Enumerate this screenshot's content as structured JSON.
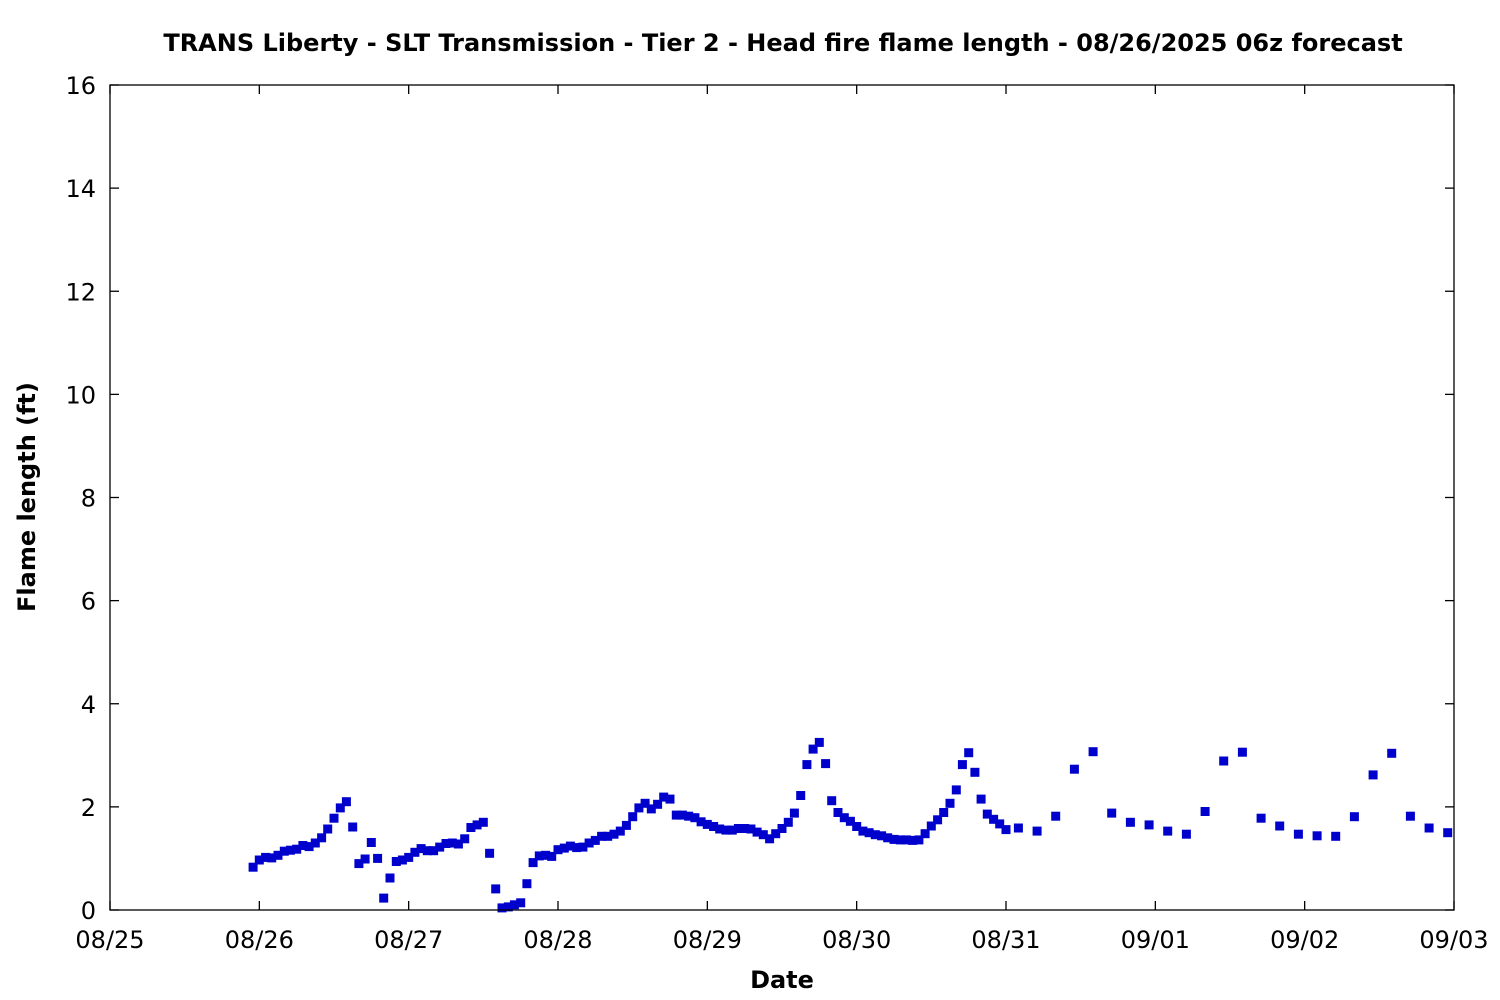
{
  "chart_data": {
    "type": "scatter",
    "title": "TRANS Liberty - SLT Transmission - Tier 2 - Head fire flame length - 08/26/2025 06z forecast",
    "xlabel": "Date",
    "ylabel": "Flame length (ft)",
    "x_unit": "days after 08/25 00z",
    "xlim": [
      0,
      9
    ],
    "ylim": [
      0,
      16
    ],
    "x_ticks": [
      {
        "value": 0,
        "label": "08/25"
      },
      {
        "value": 1,
        "label": "08/26"
      },
      {
        "value": 2,
        "label": "08/27"
      },
      {
        "value": 3,
        "label": "08/28"
      },
      {
        "value": 4,
        "label": "08/29"
      },
      {
        "value": 5,
        "label": "08/30"
      },
      {
        "value": 6,
        "label": "08/31"
      },
      {
        "value": 7,
        "label": "09/01"
      },
      {
        "value": 8,
        "label": "09/02"
      },
      {
        "value": 9,
        "label": "09/03"
      }
    ],
    "y_ticks": [
      {
        "value": 0,
        "label": "0"
      },
      {
        "value": 2,
        "label": "2"
      },
      {
        "value": 4,
        "label": "4"
      },
      {
        "value": 6,
        "label": "6"
      },
      {
        "value": 8,
        "label": "8"
      },
      {
        "value": 10,
        "label": "10"
      },
      {
        "value": 12,
        "label": "12"
      },
      {
        "value": 14,
        "label": "14"
      },
      {
        "value": 16,
        "label": "16"
      }
    ],
    "grid": false,
    "marker_color": "#0000cc",
    "series": [
      {
        "points": [
          [
            0.958,
            0.83
          ],
          [
            1.0,
            0.97
          ],
          [
            1.042,
            1.02
          ],
          [
            1.083,
            1.01
          ],
          [
            1.125,
            1.06
          ],
          [
            1.167,
            1.14
          ],
          [
            1.208,
            1.16
          ],
          [
            1.25,
            1.18
          ],
          [
            1.292,
            1.25
          ],
          [
            1.333,
            1.23
          ],
          [
            1.375,
            1.3
          ],
          [
            1.417,
            1.4
          ],
          [
            1.458,
            1.57
          ],
          [
            1.5,
            1.78
          ],
          [
            1.542,
            1.98
          ],
          [
            1.583,
            2.1
          ],
          [
            1.625,
            1.61
          ],
          [
            1.667,
            0.9
          ],
          [
            1.708,
            0.99
          ],
          [
            1.75,
            1.31
          ],
          [
            1.792,
            1.0
          ],
          [
            1.833,
            0.23
          ],
          [
            1.875,
            0.62
          ],
          [
            1.917,
            0.94
          ],
          [
            1.958,
            0.97
          ],
          [
            2.0,
            1.02
          ],
          [
            2.042,
            1.12
          ],
          [
            2.083,
            1.19
          ],
          [
            2.125,
            1.15
          ],
          [
            2.167,
            1.15
          ],
          [
            2.208,
            1.22
          ],
          [
            2.25,
            1.29
          ],
          [
            2.292,
            1.3
          ],
          [
            2.333,
            1.28
          ],
          [
            2.375,
            1.38
          ],
          [
            2.417,
            1.6
          ],
          [
            2.458,
            1.65
          ],
          [
            2.5,
            1.7
          ],
          [
            2.542,
            1.1
          ],
          [
            2.583,
            0.41
          ],
          [
            2.625,
            0.04
          ],
          [
            2.667,
            0.06
          ],
          [
            2.708,
            0.1
          ],
          [
            2.75,
            0.14
          ],
          [
            2.792,
            0.51
          ],
          [
            2.833,
            0.92
          ],
          [
            2.875,
            1.05
          ],
          [
            2.917,
            1.06
          ],
          [
            2.958,
            1.04
          ],
          [
            3.0,
            1.17
          ],
          [
            3.042,
            1.2
          ],
          [
            3.083,
            1.24
          ],
          [
            3.125,
            1.21
          ],
          [
            3.167,
            1.22
          ],
          [
            3.208,
            1.3
          ],
          [
            3.25,
            1.35
          ],
          [
            3.292,
            1.43
          ],
          [
            3.333,
            1.43
          ],
          [
            3.375,
            1.47
          ],
          [
            3.417,
            1.53
          ],
          [
            3.458,
            1.64
          ],
          [
            3.5,
            1.81
          ],
          [
            3.542,
            1.98
          ],
          [
            3.583,
            2.07
          ],
          [
            3.625,
            1.96
          ],
          [
            3.667,
            2.05
          ],
          [
            3.708,
            2.19
          ],
          [
            3.75,
            2.15
          ],
          [
            3.792,
            1.84
          ],
          [
            3.833,
            1.84
          ],
          [
            3.875,
            1.82
          ],
          [
            3.917,
            1.79
          ],
          [
            3.958,
            1.71
          ],
          [
            4.0,
            1.66
          ],
          [
            4.042,
            1.62
          ],
          [
            4.083,
            1.57
          ],
          [
            4.125,
            1.55
          ],
          [
            4.167,
            1.55
          ],
          [
            4.208,
            1.58
          ],
          [
            4.25,
            1.58
          ],
          [
            4.292,
            1.57
          ],
          [
            4.333,
            1.51
          ],
          [
            4.375,
            1.46
          ],
          [
            4.417,
            1.38
          ],
          [
            4.458,
            1.48
          ],
          [
            4.5,
            1.58
          ],
          [
            4.542,
            1.7
          ],
          [
            4.583,
            1.88
          ],
          [
            4.625,
            2.22
          ],
          [
            4.667,
            2.82
          ],
          [
            4.708,
            3.12
          ],
          [
            4.75,
            3.25
          ],
          [
            4.792,
            2.84
          ],
          [
            4.833,
            2.12
          ],
          [
            4.875,
            1.89
          ],
          [
            4.917,
            1.79
          ],
          [
            4.958,
            1.72
          ],
          [
            5.0,
            1.62
          ],
          [
            5.042,
            1.53
          ],
          [
            5.083,
            1.5
          ],
          [
            5.125,
            1.46
          ],
          [
            5.167,
            1.44
          ],
          [
            5.208,
            1.4
          ],
          [
            5.25,
            1.37
          ],
          [
            5.292,
            1.36
          ],
          [
            5.333,
            1.36
          ],
          [
            5.375,
            1.35
          ],
          [
            5.417,
            1.36
          ],
          [
            5.458,
            1.48
          ],
          [
            5.5,
            1.63
          ],
          [
            5.542,
            1.75
          ],
          [
            5.583,
            1.89
          ],
          [
            5.625,
            2.07
          ],
          [
            5.667,
            2.33
          ],
          [
            5.708,
            2.82
          ],
          [
            5.75,
            3.05
          ],
          [
            5.792,
            2.67
          ],
          [
            5.833,
            2.15
          ],
          [
            5.875,
            1.86
          ],
          [
            5.917,
            1.76
          ],
          [
            5.958,
            1.67
          ],
          [
            6.0,
            1.56
          ],
          [
            6.083,
            1.59
          ],
          [
            6.208,
            1.53
          ],
          [
            6.333,
            1.82
          ],
          [
            6.458,
            2.73
          ],
          [
            6.583,
            3.07
          ],
          [
            6.708,
            1.88
          ],
          [
            6.833,
            1.7
          ],
          [
            6.958,
            1.65
          ],
          [
            7.083,
            1.53
          ],
          [
            7.208,
            1.47
          ],
          [
            7.333,
            1.91
          ],
          [
            7.458,
            2.89
          ],
          [
            7.583,
            3.06
          ],
          [
            7.708,
            1.78
          ],
          [
            7.833,
            1.63
          ],
          [
            7.958,
            1.47
          ],
          [
            8.083,
            1.44
          ],
          [
            8.208,
            1.43
          ],
          [
            8.333,
            1.81
          ],
          [
            8.458,
            2.62
          ],
          [
            8.583,
            3.04
          ],
          [
            8.708,
            1.82
          ],
          [
            8.833,
            1.59
          ],
          [
            8.958,
            1.5
          ]
        ]
      }
    ]
  }
}
